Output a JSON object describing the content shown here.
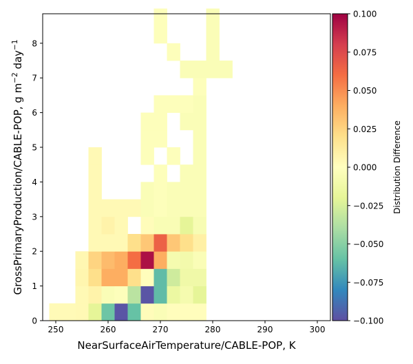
{
  "chart_data": {
    "type": "heatmap",
    "title": "",
    "xlabel": "NearSurfaceAirTemperature/CABLE-POP,  K",
    "ylabel_parts": [
      "GrossPrimaryProduction/CABLE-POP,  g m",
      "−2",
      " day",
      "−1"
    ],
    "xlim": [
      247.5,
      302.5
    ],
    "ylim": [
      0,
      8.85
    ],
    "xticks": [
      250,
      260,
      270,
      280,
      290,
      300
    ],
    "yticks": [
      0,
      1,
      2,
      3,
      4,
      5,
      6,
      7,
      8
    ],
    "bin_width_x": 2.5,
    "bin_height_y": 0.5,
    "colorbar": {
      "label": "Distribution Difference",
      "range": [
        -0.1,
        0.1
      ],
      "ticks": [
        -0.1,
        -0.075,
        -0.05,
        -0.025,
        0.0,
        0.025,
        0.05,
        0.075,
        0.1
      ],
      "tick_labels": [
        "−0.100",
        "−0.075",
        "−0.050",
        "−0.025",
        "0.000",
        "0.025",
        "0.050",
        "0.075",
        "0.100"
      ],
      "colormap": "Spectral_r",
      "colormap_stops": [
        "#5e4fa2",
        "#3288bd",
        "#66c2a5",
        "#abdda4",
        "#e6f598",
        "#ffffbf",
        "#fee08b",
        "#fdae61",
        "#f46d43",
        "#d53e4f",
        "#9e0142"
      ]
    },
    "grid": false,
    "legend": "none",
    "cells": [
      {
        "x": 250,
        "y": 0.25,
        "v": 0.003
      },
      {
        "x": 252.5,
        "y": 0.25,
        "v": 0.003
      },
      {
        "x": 255,
        "y": 0.25,
        "v": 0.004
      },
      {
        "x": 257.5,
        "y": 0.25,
        "v": -0.02
      },
      {
        "x": 260,
        "y": 0.25,
        "v": -0.058
      },
      {
        "x": 262.5,
        "y": 0.25,
        "v": -0.098
      },
      {
        "x": 265,
        "y": 0.25,
        "v": -0.06
      },
      {
        "x": 267.5,
        "y": 0.25,
        "v": 0.002
      },
      {
        "x": 270,
        "y": 0.25,
        "v": -0.004
      },
      {
        "x": 272.5,
        "y": 0.25,
        "v": 0.001
      },
      {
        "x": 275,
        "y": 0.25,
        "v": 0.001
      },
      {
        "x": 277.5,
        "y": 0.25,
        "v": 0.001
      },
      {
        "x": 255,
        "y": 0.75,
        "v": 0.004
      },
      {
        "x": 257.5,
        "y": 0.75,
        "v": 0.008
      },
      {
        "x": 260,
        "y": 0.75,
        "v": -0.004
      },
      {
        "x": 262.5,
        "y": 0.75,
        "v": -0.002
      },
      {
        "x": 265,
        "y": 0.75,
        "v": -0.035
      },
      {
        "x": 267.5,
        "y": 0.75,
        "v": -0.098
      },
      {
        "x": 270,
        "y": 0.75,
        "v": -0.062
      },
      {
        "x": 272.5,
        "y": 0.75,
        "v": -0.015
      },
      {
        "x": 275,
        "y": 0.75,
        "v": -0.008
      },
      {
        "x": 277.5,
        "y": 0.75,
        "v": -0.02
      },
      {
        "x": 255,
        "y": 1.25,
        "v": 0.006
      },
      {
        "x": 257.5,
        "y": 1.25,
        "v": 0.02
      },
      {
        "x": 260,
        "y": 1.25,
        "v": 0.04
      },
      {
        "x": 262.5,
        "y": 1.25,
        "v": 0.04
      },
      {
        "x": 265,
        "y": 1.25,
        "v": 0.02
      },
      {
        "x": 267.5,
        "y": 1.25,
        "v": 0.001
      },
      {
        "x": 270,
        "y": 1.25,
        "v": -0.062
      },
      {
        "x": 272.5,
        "y": 1.25,
        "v": -0.028
      },
      {
        "x": 275,
        "y": 1.25,
        "v": -0.012
      },
      {
        "x": 277.5,
        "y": 1.25,
        "v": -0.012
      },
      {
        "x": 255,
        "y": 1.75,
        "v": 0.005
      },
      {
        "x": 257.5,
        "y": 1.75,
        "v": 0.025
      },
      {
        "x": 260,
        "y": 1.75,
        "v": 0.035
      },
      {
        "x": 262.5,
        "y": 1.75,
        "v": 0.04
      },
      {
        "x": 265,
        "y": 1.75,
        "v": 0.06
      },
      {
        "x": 267.5,
        "y": 1.75,
        "v": 0.095
      },
      {
        "x": 270,
        "y": 1.75,
        "v": 0.04
      },
      {
        "x": 272.5,
        "y": 1.75,
        "v": -0.008
      },
      {
        "x": 275,
        "y": 1.75,
        "v": -0.01
      },
      {
        "x": 277.5,
        "y": 1.75,
        "v": -0.004
      },
      {
        "x": 257.5,
        "y": 2.25,
        "v": 0.004
      },
      {
        "x": 260,
        "y": 2.25,
        "v": 0.004
      },
      {
        "x": 262.5,
        "y": 2.25,
        "v": 0.004
      },
      {
        "x": 265,
        "y": 2.25,
        "v": 0.02
      },
      {
        "x": 267.5,
        "y": 2.25,
        "v": 0.03
      },
      {
        "x": 270,
        "y": 2.25,
        "v": 0.065
      },
      {
        "x": 272.5,
        "y": 2.25,
        "v": 0.03
      },
      {
        "x": 275,
        "y": 2.25,
        "v": 0.02
      },
      {
        "x": 277.5,
        "y": 2.25,
        "v": 0.01
      },
      {
        "x": 257.5,
        "y": 2.75,
        "v": 0.004
      },
      {
        "x": 260,
        "y": 2.75,
        "v": 0.008
      },
      {
        "x": 262.5,
        "y": 2.75,
        "v": 0.004
      },
      {
        "x": 267.5,
        "y": 2.75,
        "v": 0.002
      },
      {
        "x": 270,
        "y": 2.75,
        "v": -0.005
      },
      {
        "x": 272.5,
        "y": 2.75,
        "v": -0.005
      },
      {
        "x": 275,
        "y": 2.75,
        "v": -0.02
      },
      {
        "x": 277.5,
        "y": 2.75,
        "v": -0.006
      },
      {
        "x": 257.5,
        "y": 3.25,
        "v": 0.004
      },
      {
        "x": 260,
        "y": 3.25,
        "v": 0.004
      },
      {
        "x": 262.5,
        "y": 3.25,
        "v": 0.004
      },
      {
        "x": 265,
        "y": 3.25,
        "v": 0.004
      },
      {
        "x": 267.5,
        "y": 3.25,
        "v": -0.004
      },
      {
        "x": 270,
        "y": 3.25,
        "v": -0.002
      },
      {
        "x": 272.5,
        "y": 3.25,
        "v": -0.004
      },
      {
        "x": 275,
        "y": 3.25,
        "v": -0.004
      },
      {
        "x": 277.5,
        "y": 3.25,
        "v": -0.004
      },
      {
        "x": 257.5,
        "y": 3.75,
        "v": 0.004
      },
      {
        "x": 267.5,
        "y": 3.75,
        "v": -0.004
      },
      {
        "x": 270,
        "y": 3.75,
        "v": -0.002
      },
      {
        "x": 272.5,
        "y": 3.75,
        "v": -0.004
      },
      {
        "x": 275,
        "y": 3.75,
        "v": -0.004
      },
      {
        "x": 277.5,
        "y": 3.75,
        "v": -0.004
      },
      {
        "x": 257.5,
        "y": 4.25,
        "v": 0.004
      },
      {
        "x": 270,
        "y": 4.25,
        "v": -0.002
      },
      {
        "x": 275,
        "y": 4.25,
        "v": -0.004
      },
      {
        "x": 277.5,
        "y": 4.25,
        "v": -0.004
      },
      {
        "x": 257.5,
        "y": 4.75,
        "v": 0.004
      },
      {
        "x": 267.5,
        "y": 4.75,
        "v": -0.002
      },
      {
        "x": 272.5,
        "y": 4.75,
        "v": -0.002
      },
      {
        "x": 277.5,
        "y": 4.75,
        "v": -0.004
      },
      {
        "x": 267.5,
        "y": 5.25,
        "v": -0.002
      },
      {
        "x": 270,
        "y": 5.25,
        "v": -0.002
      },
      {
        "x": 277.5,
        "y": 5.25,
        "v": -0.004
      },
      {
        "x": 267.5,
        "y": 5.75,
        "v": -0.002
      },
      {
        "x": 270,
        "y": 5.75,
        "v": -0.002
      },
      {
        "x": 275,
        "y": 5.75,
        "v": -0.004
      },
      {
        "x": 277.5,
        "y": 5.75,
        "v": -0.004
      },
      {
        "x": 270,
        "y": 6.25,
        "v": -0.002
      },
      {
        "x": 272.5,
        "y": 6.25,
        "v": -0.002
      },
      {
        "x": 275,
        "y": 6.25,
        "v": -0.002
      },
      {
        "x": 277.5,
        "y": 6.25,
        "v": -0.004
      },
      {
        "x": 277.5,
        "y": 6.75,
        "v": -0.002
      },
      {
        "x": 275,
        "y": 7.25,
        "v": -0.004
      },
      {
        "x": 277.5,
        "y": 7.25,
        "v": -0.004
      },
      {
        "x": 280,
        "y": 7.25,
        "v": -0.004
      },
      {
        "x": 282.5,
        "y": 7.25,
        "v": -0.004
      },
      {
        "x": 272.5,
        "y": 7.75,
        "v": -0.002
      },
      {
        "x": 280,
        "y": 7.75,
        "v": -0.004
      },
      {
        "x": 270,
        "y": 8.25,
        "v": -0.002
      },
      {
        "x": 280,
        "y": 8.25,
        "v": -0.004
      },
      {
        "x": 270,
        "y": 8.75,
        "v": -0.002
      },
      {
        "x": 280,
        "y": 8.75,
        "v": -0.004
      }
    ]
  }
}
